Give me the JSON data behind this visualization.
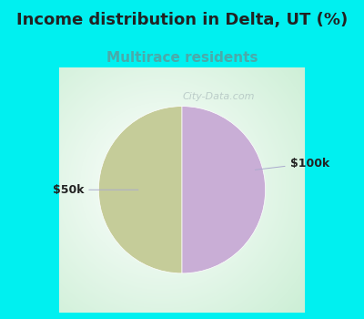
{
  "title": "Income distribution in Delta, UT (%)",
  "subtitle": "Multirace residents",
  "title_fontsize": 13,
  "subtitle_fontsize": 11,
  "title_color": "#222222",
  "subtitle_color": "#4aaaaa",
  "top_bg_color": "#00f0f0",
  "chart_bg_color_center": "#ffffff",
  "chart_bg_color_edge": "#c8ebd8",
  "slices": [
    {
      "label": "$50k",
      "value": 50,
      "color": "#c5cc99"
    },
    {
      "label": "$100k",
      "value": 50,
      "color": "#c9aed6"
    }
  ],
  "watermark": "City-Data.com",
  "watermark_color": "#aabbbb",
  "label_color": "#222222",
  "label_fontsize": 9,
  "line_color": "#aaaacc"
}
